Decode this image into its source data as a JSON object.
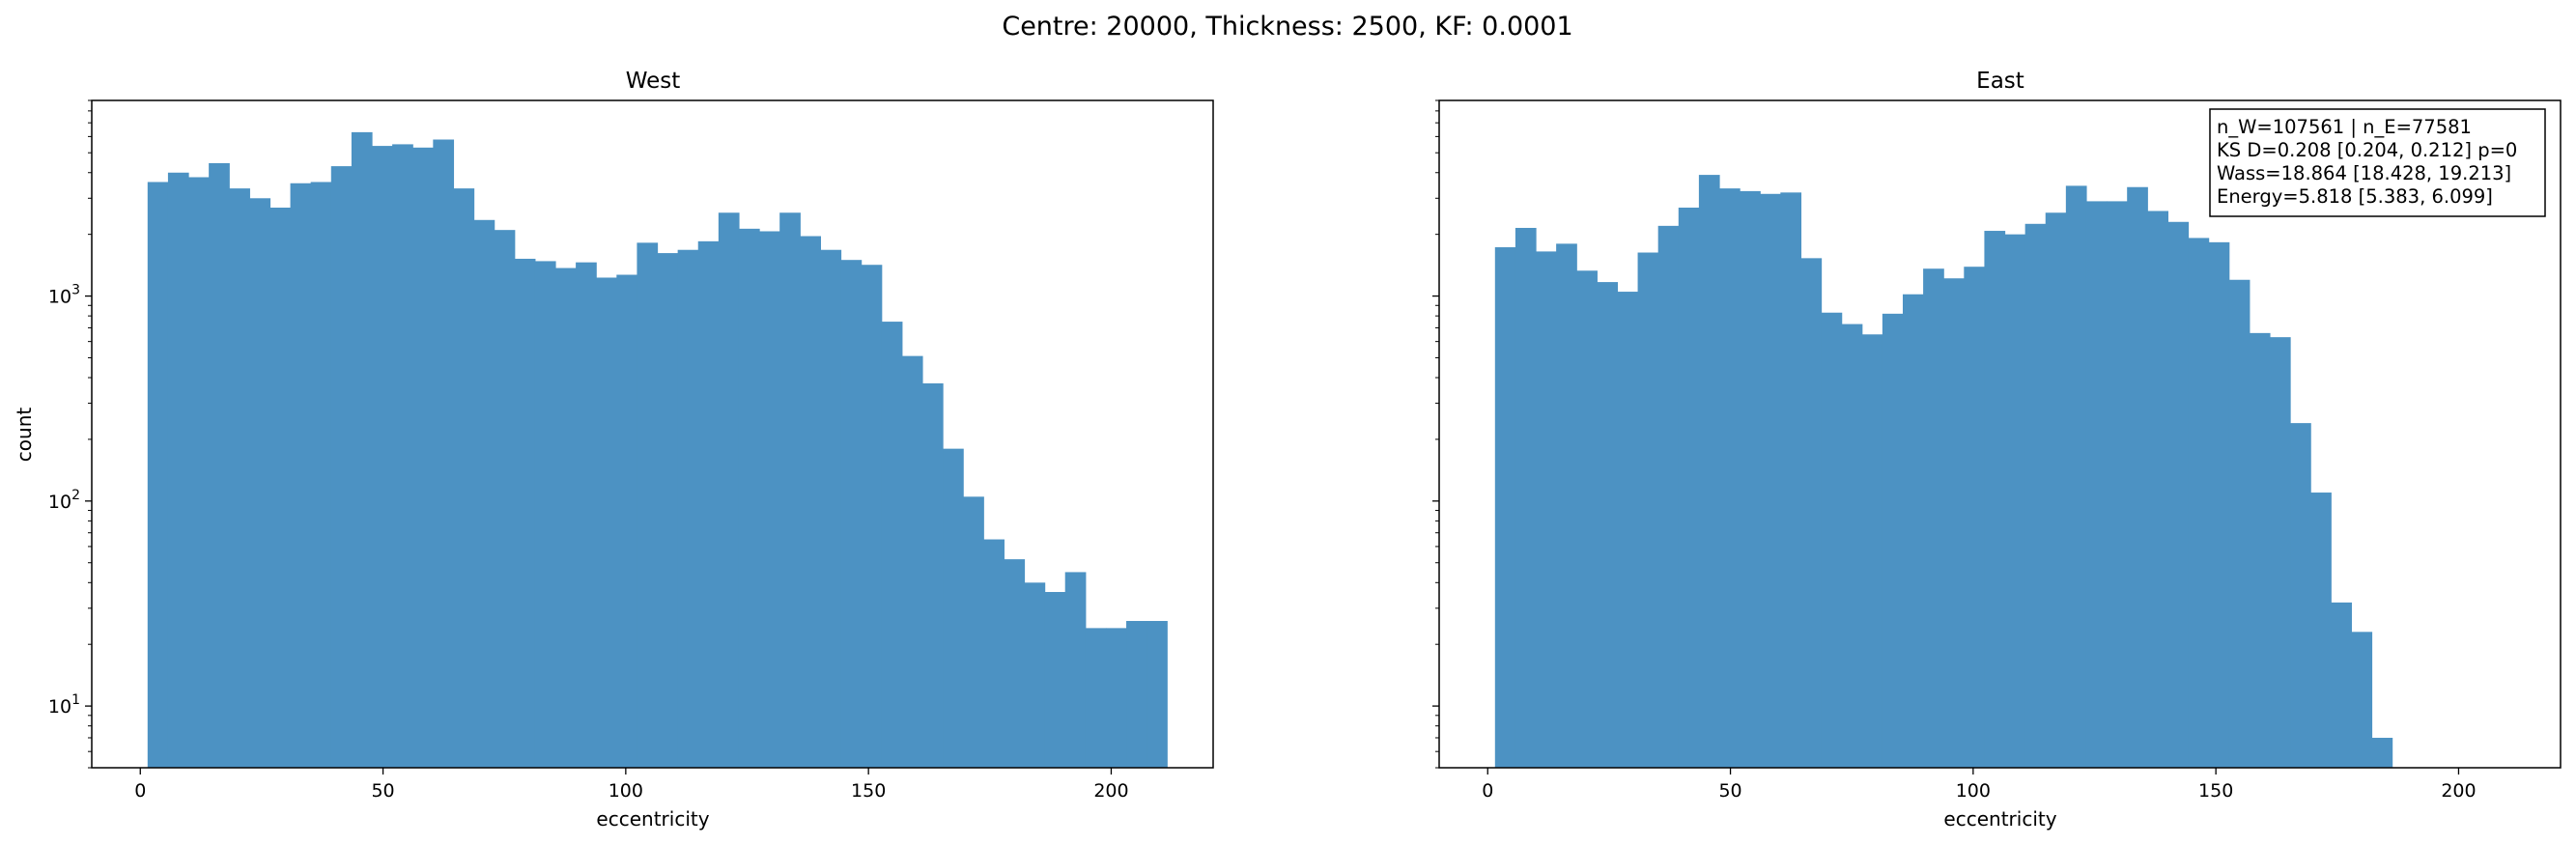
{
  "suptitle": "Centre: 20000, Thickness: 2500, KF: 0.0001",
  "chart_data": [
    {
      "type": "bar",
      "subtype": "histogram",
      "title": "West",
      "xlabel": "eccentricity",
      "ylabel": "count",
      "yscale": "log",
      "xlim": [
        -10,
        221
      ],
      "ylim": [
        5,
        9000
      ],
      "xticks": [
        0,
        50,
        100,
        150,
        200
      ],
      "yticks": [
        {
          "value": 10,
          "base": "10",
          "exp": "1"
        },
        {
          "value": 100,
          "base": "10",
          "exp": "2"
        },
        {
          "value": 1000,
          "base": "10",
          "exp": "3"
        }
      ],
      "color": "#4c92c3",
      "bin_start": 1.5,
      "bin_width": 4.2,
      "values": [
        3600,
        4000,
        3800,
        4450,
        3350,
        3000,
        2700,
        3550,
        3600,
        4300,
        6300,
        5400,
        5500,
        5300,
        5800,
        3350,
        2350,
        2100,
        1520,
        1480,
        1370,
        1460,
        1230,
        1270,
        1820,
        1620,
        1680,
        1850,
        2550,
        2130,
        2070,
        2550,
        1960,
        1680,
        1500,
        1420,
        750,
        510,
        375,
        180,
        105,
        65,
        52,
        40,
        36,
        45,
        24,
        24,
        26,
        26
      ]
    },
    {
      "type": "bar",
      "subtype": "histogram",
      "title": "East",
      "xlabel": "eccentricity",
      "ylabel": "",
      "yscale": "log",
      "xlim": [
        -10,
        221
      ],
      "ylim": [
        5,
        9000
      ],
      "xticks": [
        0,
        50,
        100,
        150,
        200
      ],
      "color": "#4c92c3",
      "bin_start": 1.5,
      "bin_width": 4.2,
      "values": [
        1730,
        2150,
        1650,
        1800,
        1330,
        1170,
        1050,
        1630,
        2200,
        2700,
        3900,
        3350,
        3250,
        3150,
        3200,
        1530,
        830,
        730,
        650,
        820,
        1020,
        1360,
        1220,
        1390,
        2080,
        2000,
        2250,
        2550,
        3450,
        2900,
        2900,
        3400,
        2600,
        2300,
        1920,
        1830,
        1200,
        660,
        630,
        240,
        110,
        32,
        23,
        7
      ]
    }
  ],
  "annotation": {
    "lines": [
      "n_W=107561 | n_E=77581",
      "KS D=0.208 [0.204, 0.212]  p=0",
      "Wass=18.864 [18.428, 19.213]",
      "Energy=5.818 [5.383, 6.099]"
    ]
  }
}
